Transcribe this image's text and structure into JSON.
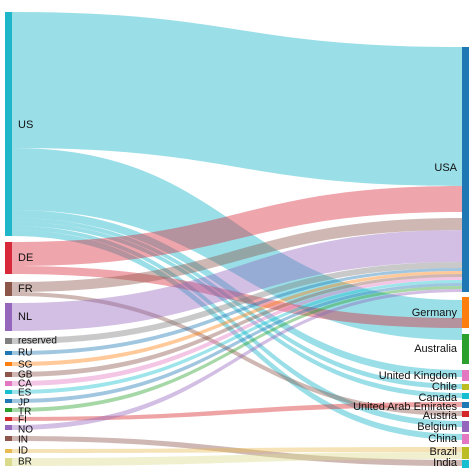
{
  "sankey": {
    "colors": {
      "US": "#1fb6c9",
      "DE": "#d8293a",
      "FR": "#8c564b",
      "NL": "#9467bd",
      "reserved": "#7f7f7f",
      "RU": "#1f77b4",
      "SG": "#ff7f0e",
      "GB": "#8c564b",
      "CA": "#e377c2",
      "ES": "#17becf",
      "JP": "#1f77b4",
      "TR": "#2ca02c",
      "FI": "#d62728",
      "NO": "#9467bd",
      "IN": "#8c564b",
      "ID": "#e7ba52",
      "BR": "#dbdb8d",
      "USA": "#1f77b4",
      "Germany": "#ff7f0e",
      "Australia": "#2ca02c",
      "United Kingdom": "#e377c2",
      "Chile": "#bcbd22",
      "Canada": "#17becf",
      "United Arab Emirates": "#1f77b4",
      "Austria": "#d62728",
      "Belgium": "#9467bd",
      "China": "#e377c2",
      "Brazil": "#bcbd22",
      "India": "#17becf"
    },
    "source_nodes": [
      {
        "id": "US",
        "label": "US"
      },
      {
        "id": "DE",
        "label": "DE"
      },
      {
        "id": "FR",
        "label": "FR"
      },
      {
        "id": "NL",
        "label": "NL"
      },
      {
        "id": "reserved",
        "label": "reserved"
      },
      {
        "id": "RU",
        "label": "RU"
      },
      {
        "id": "SG",
        "label": "SG"
      },
      {
        "id": "GB",
        "label": "GB"
      },
      {
        "id": "CA",
        "label": "CA"
      },
      {
        "id": "ES",
        "label": "ES"
      },
      {
        "id": "JP",
        "label": "JP"
      },
      {
        "id": "TR",
        "label": "TR"
      },
      {
        "id": "FI",
        "label": "FI"
      },
      {
        "id": "NO",
        "label": "NO"
      },
      {
        "id": "IN",
        "label": "IN"
      },
      {
        "id": "ID",
        "label": "ID"
      },
      {
        "id": "BR",
        "label": "BR"
      }
    ],
    "target_nodes": [
      {
        "id": "USA",
        "label": "USA"
      },
      {
        "id": "Germany",
        "label": "Germany"
      },
      {
        "id": "Australia",
        "label": "Australia"
      },
      {
        "id": "United Kingdom",
        "label": "United Kingdom"
      },
      {
        "id": "Chile",
        "label": "Chile"
      },
      {
        "id": "Canada",
        "label": "Canada"
      },
      {
        "id": "United Arab Emirates",
        "label": "United Arab Emirates"
      },
      {
        "id": "Austria",
        "label": "Austria"
      },
      {
        "id": "Belgium",
        "label": "Belgium"
      },
      {
        "id": "China",
        "label": "China"
      },
      {
        "id": "Brazil",
        "label": "Brazil"
      },
      {
        "id": "India",
        "label": "India"
      }
    ]
  }
}
